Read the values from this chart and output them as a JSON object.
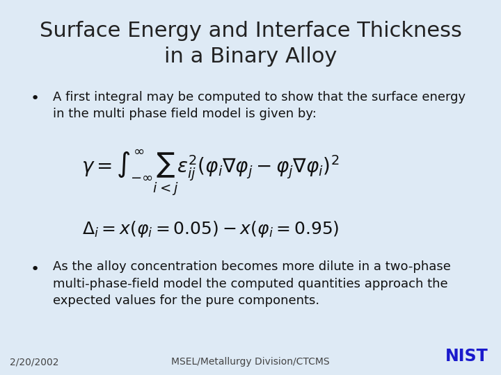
{
  "title_line1": "Surface Energy and Interface Thickness",
  "title_line2": "in a Binary Alloy",
  "title_fontsize": 22,
  "title_color": "#222222",
  "background_color": "#deeaf5",
  "bullet1_text1": "A first integral may be computed to show that the surface energy",
  "bullet1_text2": "in the multi phase field model is given by:",
  "bullet2_text1": "As the alloy concentration becomes more dilute in a two-phase",
  "bullet2_text2": "multi-phase-field model the computed quantities approach the",
  "bullet2_text3": "expected values for the pure components.",
  "footer_left": "2/20/2002",
  "footer_center": "MSEL/Metallurgy Division/CTCMS",
  "bullet_fontsize": 13,
  "eq1_fontsize": 20,
  "eq2_fontsize": 18,
  "footer_fontsize": 10,
  "text_color": "#111111",
  "nist_color": "#1a1acc",
  "footer_color": "#444444"
}
